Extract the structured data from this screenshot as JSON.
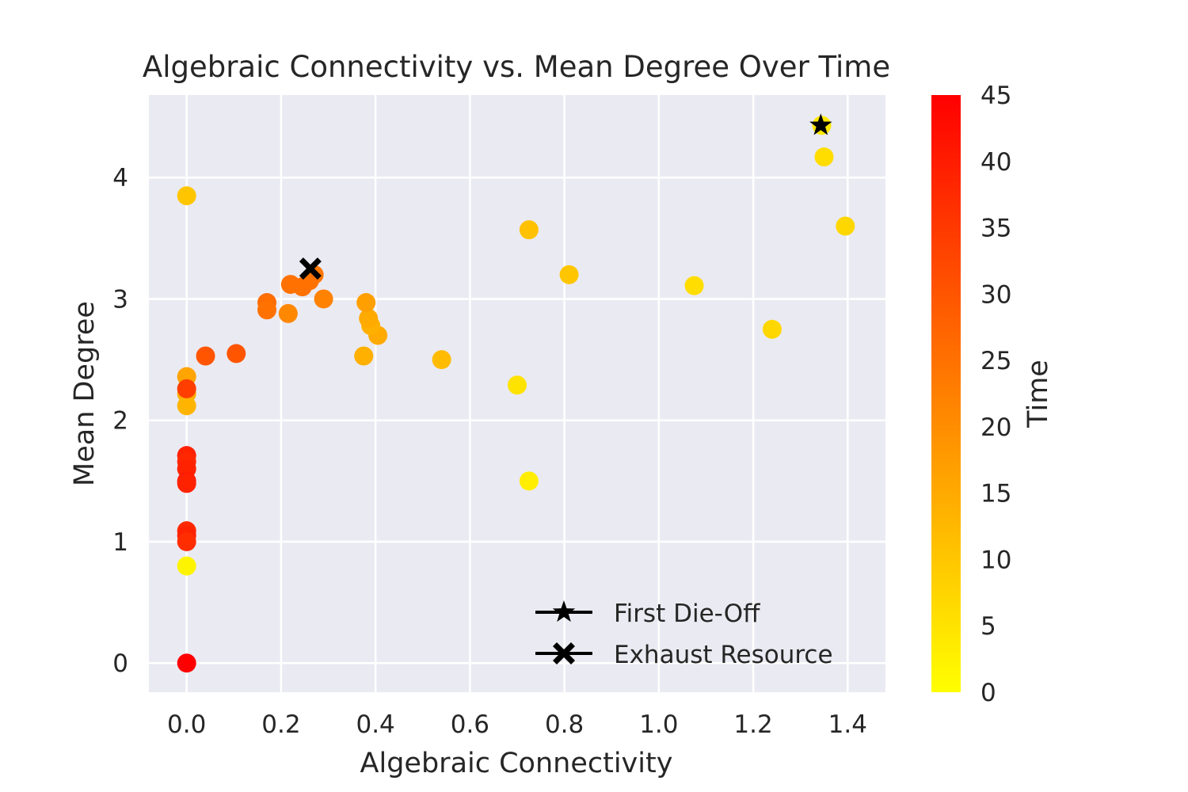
{
  "chart_data": {
    "type": "scatter",
    "title": "Algebraic Connectivity vs. Mean Degree Over Time",
    "xlabel": "Algebraic Connectivity",
    "ylabel": "Mean Degree",
    "xlim": [
      -0.08,
      1.48
    ],
    "ylim": [
      -0.24,
      4.68
    ],
    "x_ticks": [
      0.0,
      0.2,
      0.4,
      0.6,
      0.8,
      1.0,
      1.2,
      1.4
    ],
    "x_tick_labels": [
      "0.0",
      "0.2",
      "0.4",
      "0.6",
      "0.8",
      "1.0",
      "1.2",
      "1.4"
    ],
    "y_ticks": [
      0,
      1,
      2,
      3,
      4
    ],
    "y_tick_labels": [
      "0",
      "1",
      "2",
      "3",
      "4"
    ],
    "grid": true,
    "background": "#eaeaf2",
    "colormap": [
      "#ffff00",
      "#ff0000"
    ],
    "colorbar": {
      "label": "Time",
      "range": [
        0,
        45
      ],
      "ticks": [
        0,
        5,
        10,
        15,
        20,
        25,
        30,
        35,
        40,
        45
      ],
      "tick_labels": [
        "0",
        "5",
        "10",
        "15",
        "20",
        "25",
        "30",
        "35",
        "40",
        "45"
      ]
    },
    "points": [
      {
        "x": 1.345,
        "y": 4.43,
        "t": 4
      },
      {
        "x": 1.35,
        "y": 4.17,
        "t": 6
      },
      {
        "x": 1.395,
        "y": 3.6,
        "t": 7
      },
      {
        "x": 1.24,
        "y": 2.75,
        "t": 7
      },
      {
        "x": 1.075,
        "y": 3.11,
        "t": 6
      },
      {
        "x": 0.81,
        "y": 3.2,
        "t": 10
      },
      {
        "x": 0.725,
        "y": 3.57,
        "t": 11
      },
      {
        "x": 0.725,
        "y": 1.5,
        "t": 3
      },
      {
        "x": 0.7,
        "y": 2.29,
        "t": 5
      },
      {
        "x": 0.54,
        "y": 2.5,
        "t": 12
      },
      {
        "x": 0.405,
        "y": 2.7,
        "t": 15
      },
      {
        "x": 0.39,
        "y": 2.78,
        "t": 14
      },
      {
        "x": 0.385,
        "y": 2.84,
        "t": 15
      },
      {
        "x": 0.38,
        "y": 2.97,
        "t": 17
      },
      {
        "x": 0.375,
        "y": 2.53,
        "t": 14
      },
      {
        "x": 0.29,
        "y": 3.0,
        "t": 22
      },
      {
        "x": 0.27,
        "y": 3.2,
        "t": 24
      },
      {
        "x": 0.26,
        "y": 3.15,
        "t": 25
      },
      {
        "x": 0.245,
        "y": 3.1,
        "t": 25
      },
      {
        "x": 0.22,
        "y": 3.12,
        "t": 25
      },
      {
        "x": 0.215,
        "y": 2.88,
        "t": 21
      },
      {
        "x": 0.17,
        "y": 2.97,
        "t": 26
      },
      {
        "x": 0.17,
        "y": 2.91,
        "t": 25
      },
      {
        "x": 0.105,
        "y": 2.55,
        "t": 30
      },
      {
        "x": 0.04,
        "y": 2.53,
        "t": 30
      },
      {
        "x": 0.0,
        "y": 3.85,
        "t": 10
      },
      {
        "x": 0.0,
        "y": 2.36,
        "t": 16
      },
      {
        "x": 0.0,
        "y": 2.22,
        "t": 14
      },
      {
        "x": 0.0,
        "y": 2.12,
        "t": 13
      },
      {
        "x": 0.0,
        "y": 2.26,
        "t": 34
      },
      {
        "x": 0.0,
        "y": 1.71,
        "t": 39
      },
      {
        "x": 0.0,
        "y": 1.66,
        "t": 38
      },
      {
        "x": 0.0,
        "y": 1.6,
        "t": 39
      },
      {
        "x": 0.0,
        "y": 1.5,
        "t": 40
      },
      {
        "x": 0.0,
        "y": 1.48,
        "t": 39
      },
      {
        "x": 0.0,
        "y": 1.09,
        "t": 38
      },
      {
        "x": 0.0,
        "y": 1.05,
        "t": 39
      },
      {
        "x": 0.0,
        "y": 1.0,
        "t": 37
      },
      {
        "x": 0.0,
        "y": 0.8,
        "t": 2
      },
      {
        "x": 0.0,
        "y": 0.0,
        "t": 45
      }
    ],
    "markers": [
      {
        "name": "First Die-Off",
        "symbol": "star",
        "x": 1.343,
        "y": 4.43
      },
      {
        "name": "Exhaust Resource",
        "symbol": "x",
        "x": 0.262,
        "y": 3.25
      }
    ],
    "legend": {
      "placement": "lower-right",
      "entries": [
        {
          "label": "First Die-Off",
          "symbol": "star"
        },
        {
          "label": "Exhaust Resource",
          "symbol": "x"
        }
      ]
    }
  }
}
